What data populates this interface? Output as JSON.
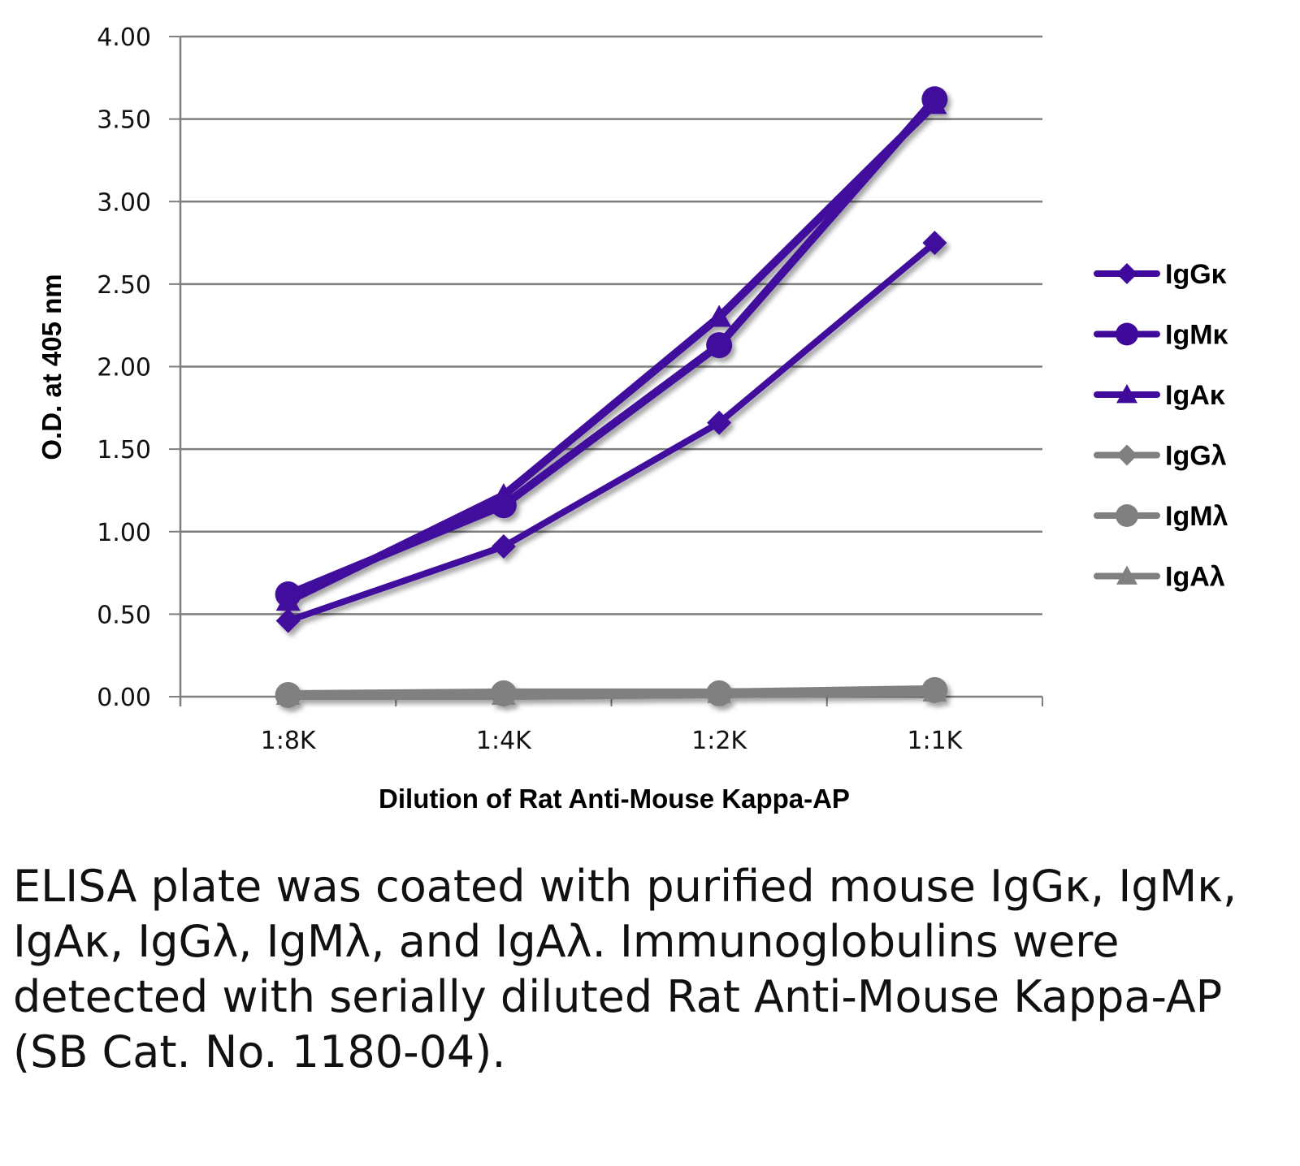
{
  "chart_data": {
    "type": "line",
    "title": "",
    "xlabel": "Dilution of Rat Anti-Mouse Kappa-AP",
    "ylabel": "O.D. at 405 nm",
    "categories": [
      "1:8K",
      "1:4K",
      "1:2K",
      "1:1K"
    ],
    "ylim": [
      0,
      4
    ],
    "yticks": [
      0,
      0.5,
      1,
      1.5,
      2,
      2.5,
      3,
      3.5,
      4
    ],
    "ytick_labels": [
      "0.00",
      "0.50",
      "1.00",
      "1.50",
      "2.00",
      "2.50",
      "3.00",
      "3.50",
      "4.00"
    ],
    "grid": true,
    "legend_position": "right",
    "series": [
      {
        "name": "IgGκ",
        "marker": "diamond",
        "color": "#3f0a9c",
        "values": [
          0.46,
          0.91,
          1.66,
          2.75
        ]
      },
      {
        "name": "IgMκ",
        "marker": "circle",
        "color": "#3f0a9c",
        "values": [
          0.62,
          1.16,
          2.13,
          3.62
        ]
      },
      {
        "name": "IgAκ",
        "marker": "triangle",
        "color": "#3f0a9c",
        "values": [
          0.58,
          1.22,
          2.3,
          3.59
        ]
      },
      {
        "name": "IgGλ",
        "marker": "diamond",
        "color": "#808080",
        "values": [
          0.01,
          0.01,
          0.02,
          0.03
        ]
      },
      {
        "name": "IgMλ",
        "marker": "circle",
        "color": "#808080",
        "values": [
          0.01,
          0.02,
          0.02,
          0.04
        ]
      },
      {
        "name": "IgAλ",
        "marker": "triangle",
        "color": "#808080",
        "values": [
          0.01,
          0.01,
          0.02,
          0.03
        ]
      }
    ]
  },
  "caption": "ELISA plate was coated with purified mouse IgGκ, IgMκ, IgAκ, IgGλ, IgMλ, and IgAλ. Immunoglobulins were detected with serially diluted Rat Anti-Mouse Kappa-AP (SB Cat. No. 1180-04)."
}
